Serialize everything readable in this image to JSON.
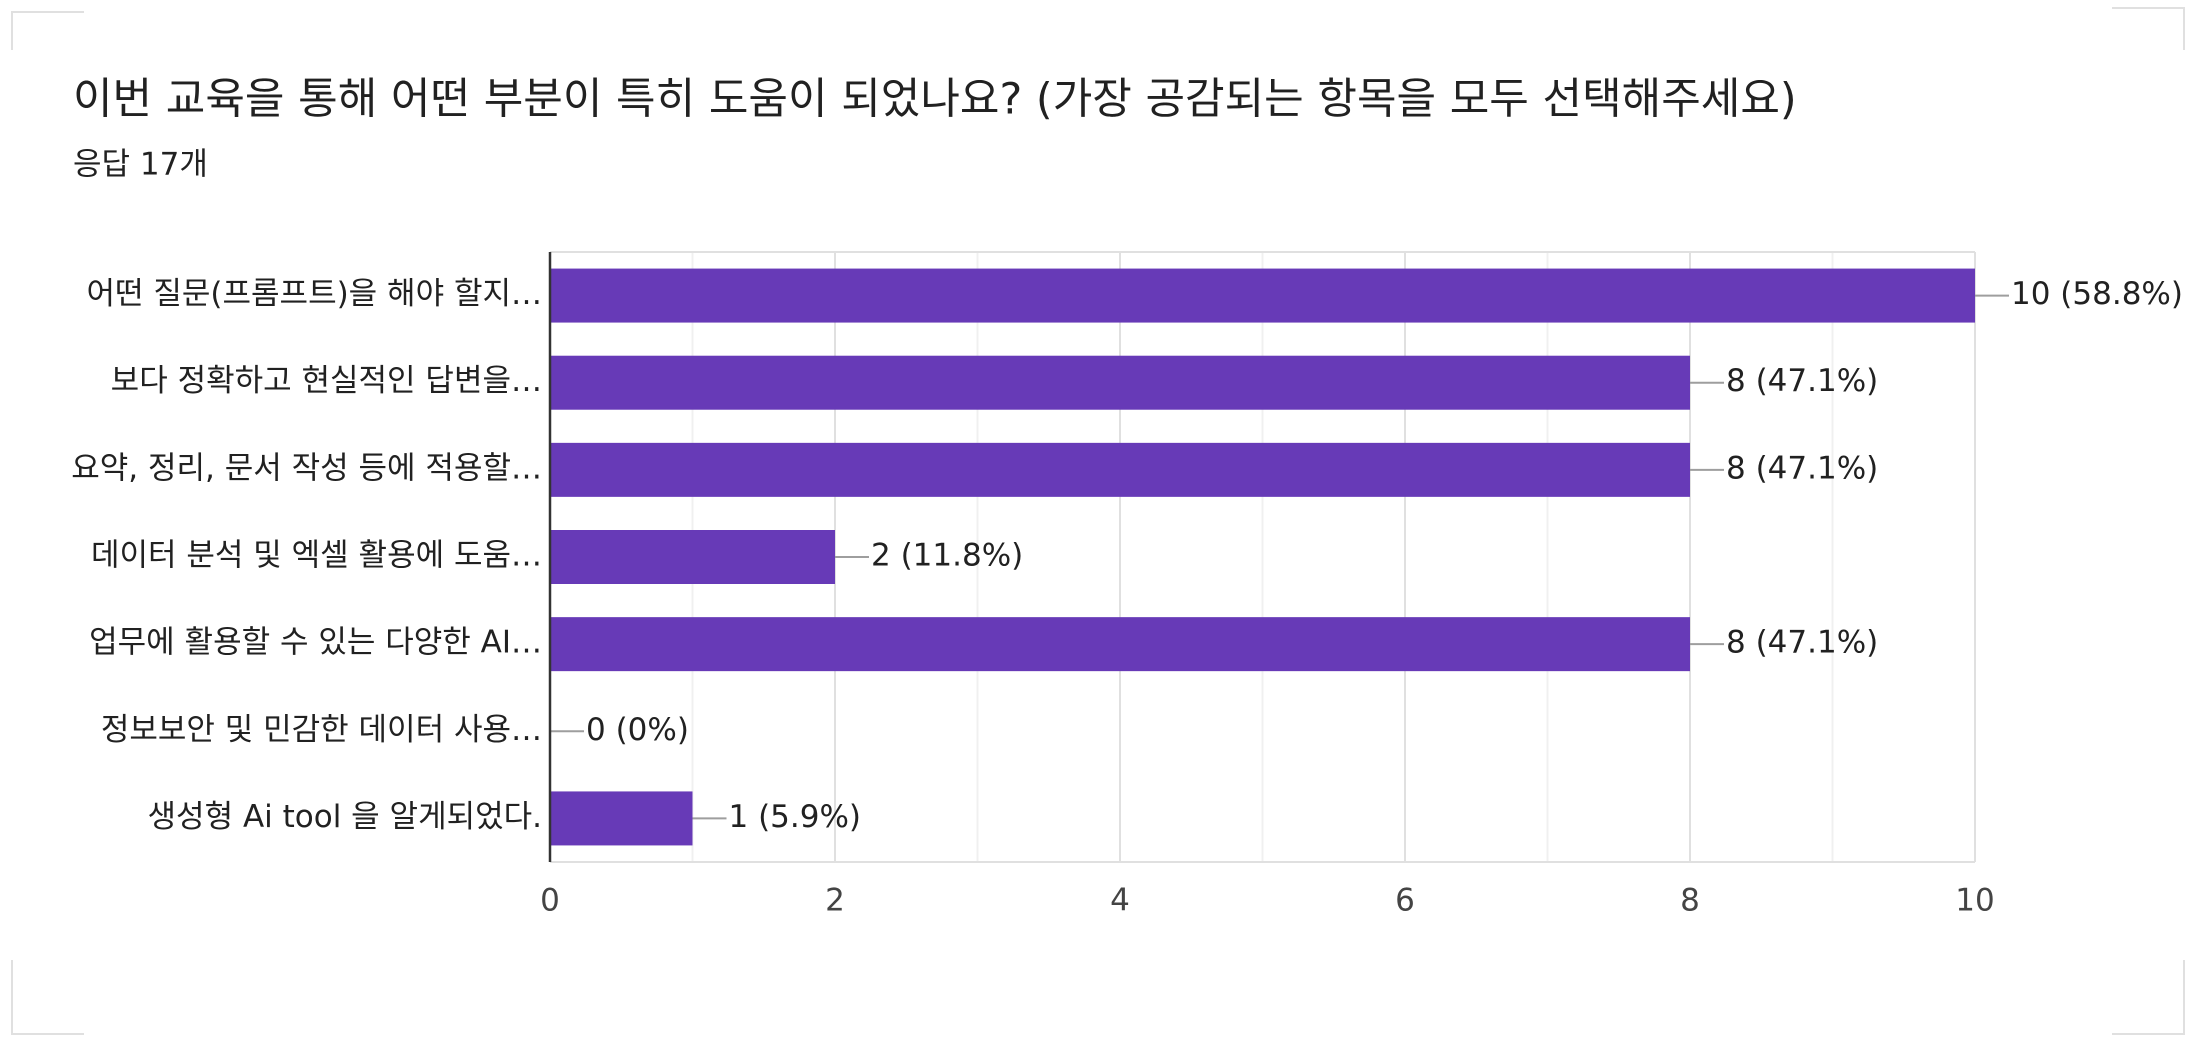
{
  "chart_data": {
    "type": "bar",
    "orientation": "horizontal",
    "title": "이번 교육을 통해 어떤 부분이 특히 도움이 되었나요? (가장 공감되는 항목을 모두 선택해주세요)",
    "subtitle": "응답 17개",
    "categories": [
      "어떤 질문(프롬프트)을 해야 할지…",
      "보다 정확하고 현실적인 답변을…",
      "요약, 정리, 문서 작성 등에 적용할…",
      "데이터 분석 및 엑셀 활용에 도움…",
      "업무에 활용할 수 있는 다양한 AI…",
      "정보보안 및 민감한 데이터 사용…",
      "생성형 Ai tool 을 알게되었다."
    ],
    "values": [
      10,
      8,
      8,
      2,
      8,
      0,
      1
    ],
    "value_labels": [
      "10 (58.8%)",
      "8 (47.1%)",
      "8 (47.1%)",
      "2 (11.8%)",
      "8 (47.1%)",
      "0 (0%)",
      "1 (5.9%)"
    ],
    "color": "#673ab7",
    "xlim": [
      0,
      10
    ],
    "xticks": [
      0,
      2,
      4,
      6,
      8,
      10
    ],
    "minor_xticks": [
      1,
      3,
      5,
      7,
      9
    ],
    "grid": true
  }
}
